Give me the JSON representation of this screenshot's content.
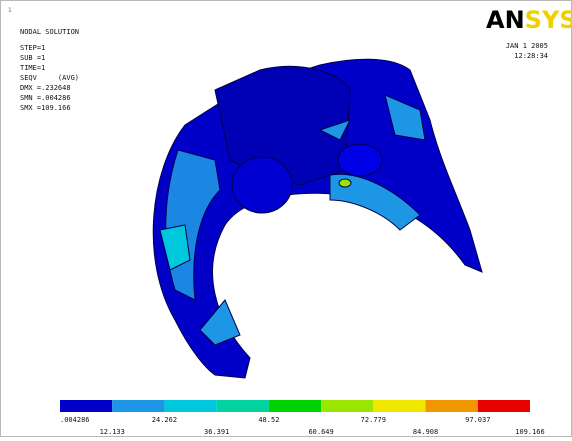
{
  "window": {
    "marker": "1"
  },
  "info": {
    "title": "NODAL SOLUTION",
    "lines": [
      "STEP=1",
      "SUB =1",
      "TIME=1",
      "SEQV     (AVG)",
      "DMX =.232648",
      "SMN =.004286",
      "SMX =109.166"
    ]
  },
  "logo": {
    "part1": "AN",
    "part2": "SYS",
    "part1_color": "#000000",
    "part2_color": "#f0d000"
  },
  "timestamp": {
    "date": "JAN  1 2005",
    "time": "12:28:34"
  },
  "legend": {
    "colors": [
      "#0000c8",
      "#1e96e6",
      "#00c8dc",
      "#00d2a0",
      "#00d200",
      "#9be600",
      "#f0e600",
      "#f09600",
      "#e60000"
    ],
    "labels": [
      ".004286",
      "12.133",
      "24.262",
      "36.391",
      "48.52",
      "60.649",
      "72.779",
      "84.908",
      "97.037",
      "109.166"
    ]
  }
}
